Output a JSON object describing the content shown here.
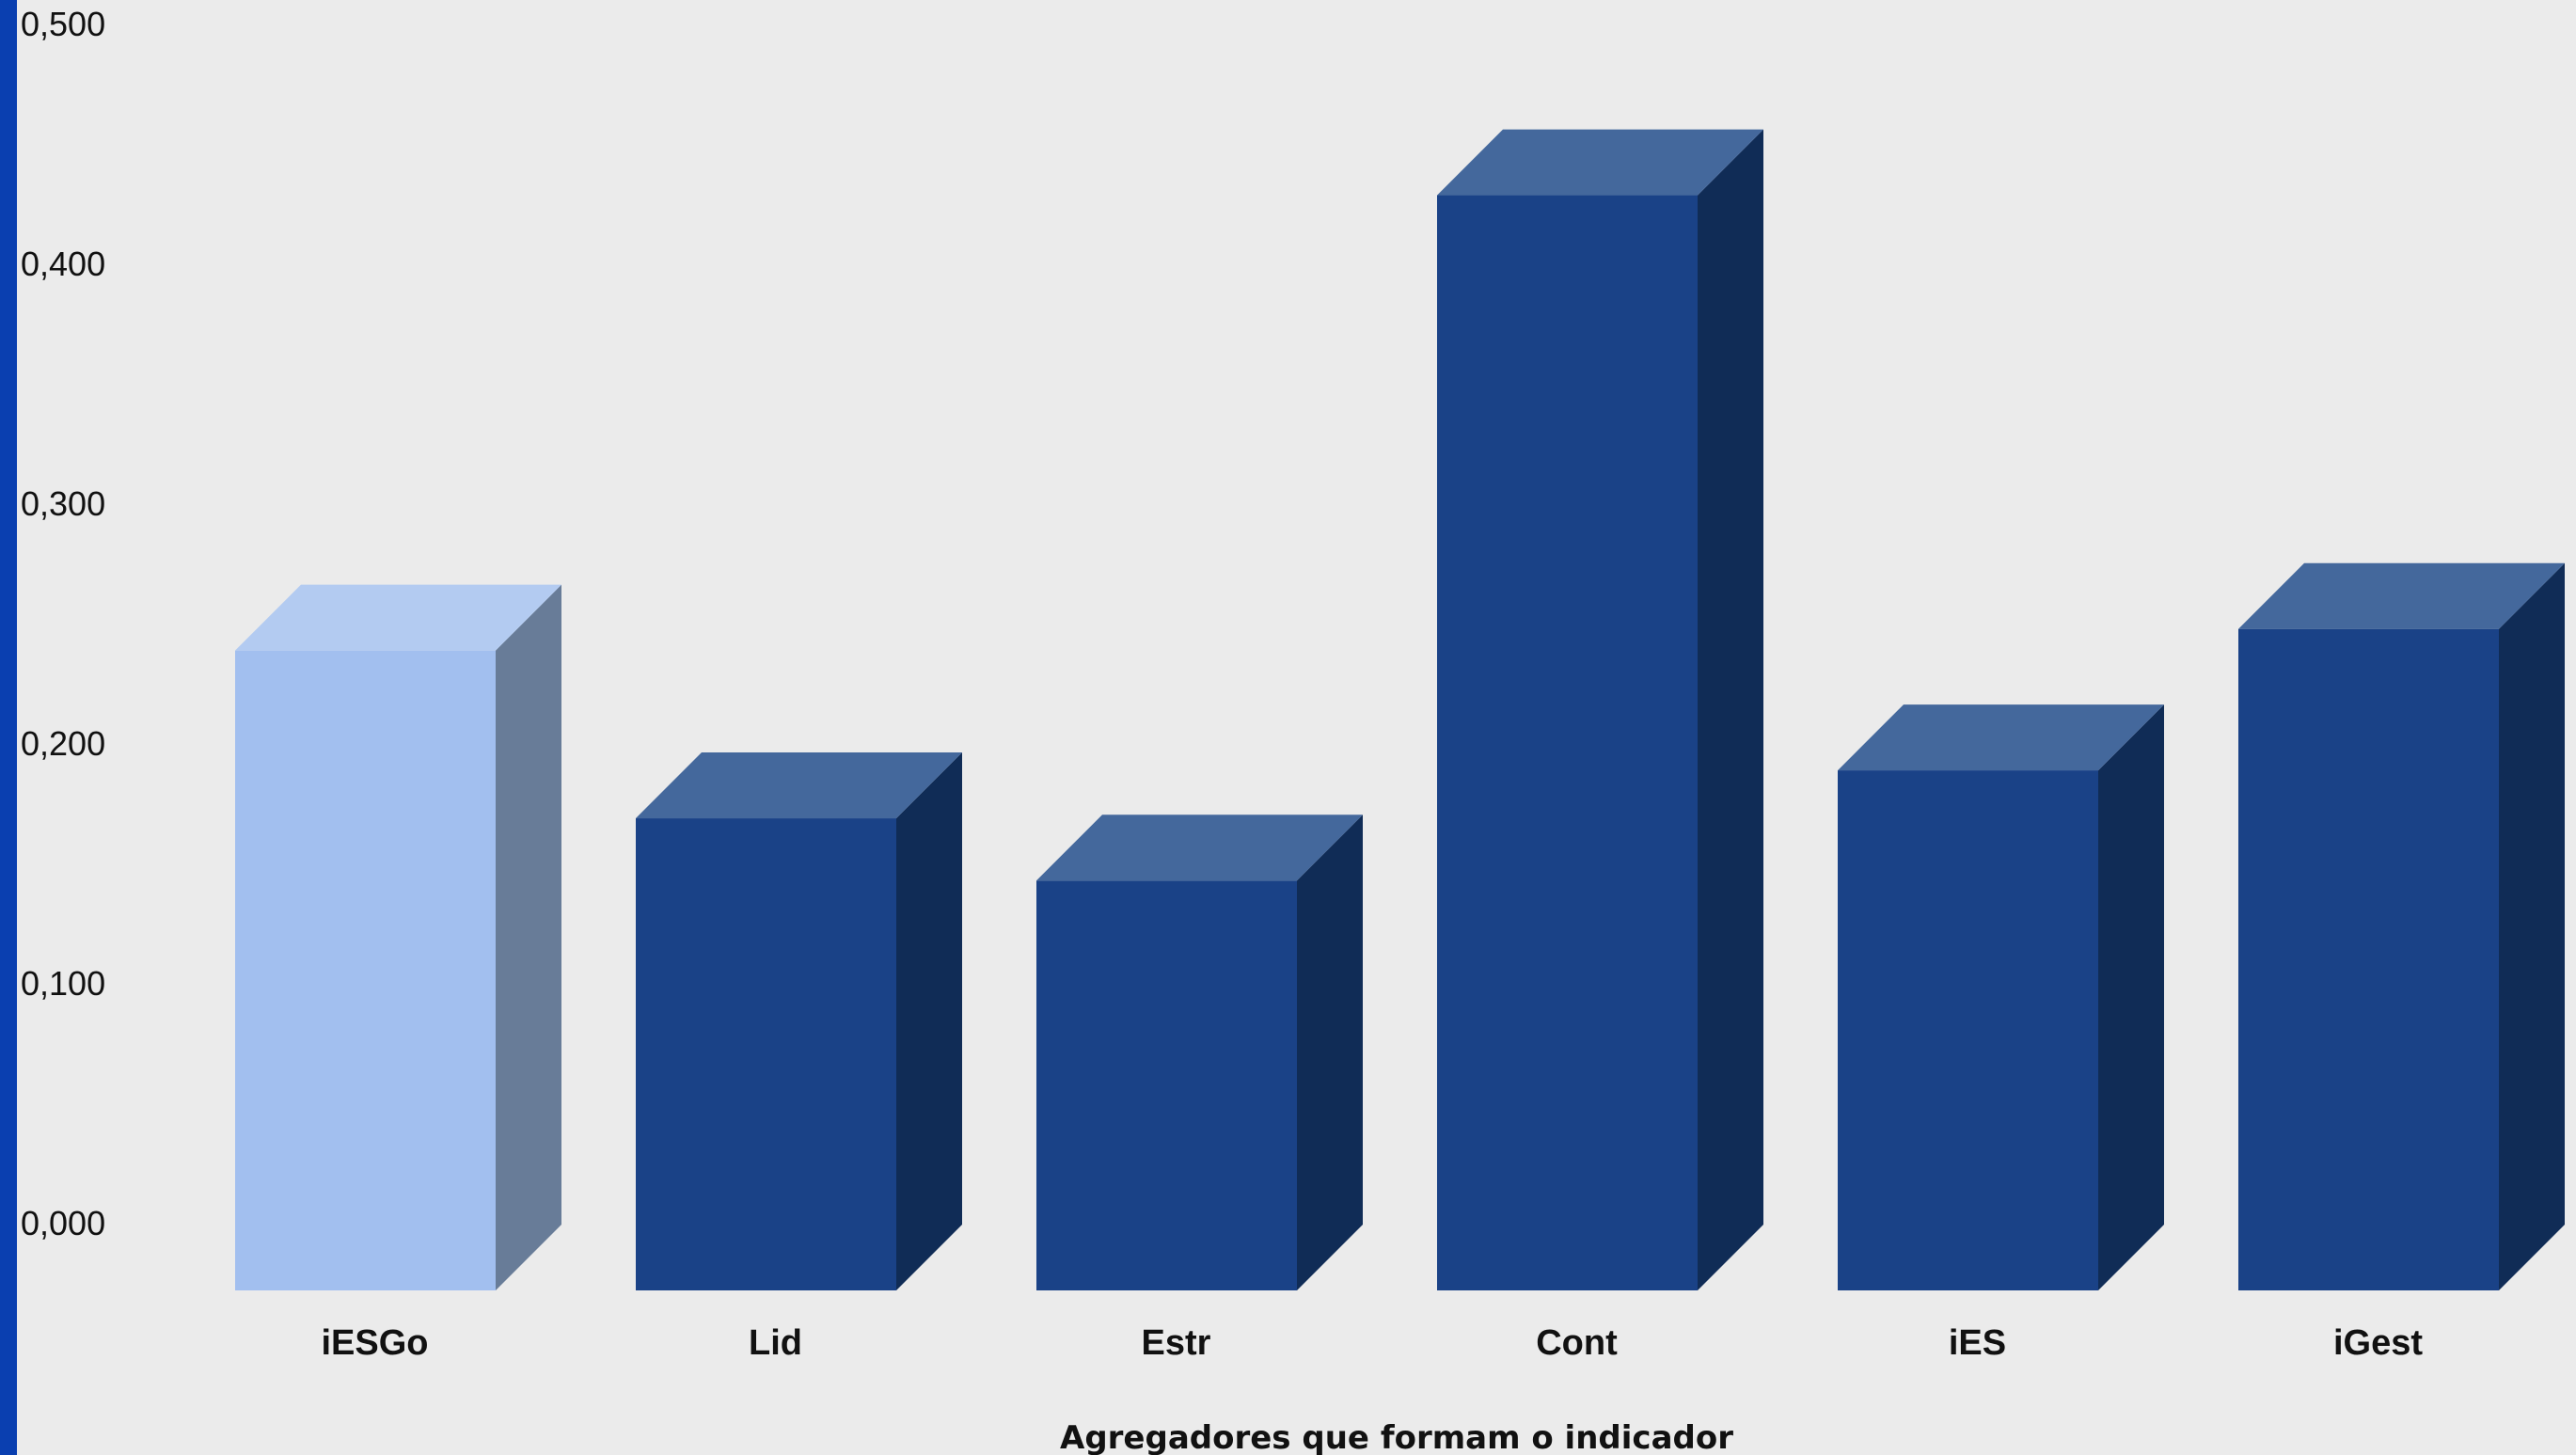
{
  "chart_data": {
    "type": "bar",
    "style": "3d-column",
    "categories": [
      "iESGo",
      "Lid",
      "Estr",
      "Cont",
      "iES",
      "iGest"
    ],
    "values": [
      0.267,
      0.197,
      0.171,
      0.457,
      0.217,
      0.276
    ],
    "ylim": [
      0,
      0.5
    ],
    "yticks": [
      0,
      0.1,
      0.2,
      0.3,
      0.4,
      0.5
    ],
    "ytick_labels": [
      "0,000",
      "0,100",
      "0,200",
      "0,300",
      "0,400",
      "0,500"
    ],
    "xlabel": "Agregadores que formam o indicador",
    "ylabel": "",
    "title": "",
    "grid": false,
    "legend": "none",
    "highlight_index": 0,
    "colors": {
      "background": "#ebebeb",
      "accent_bar": "#0a3fb0",
      "bar_front": "#1a4287",
      "bar_top": "#44689c",
      "bar_side": "#102c56",
      "highlight_front": "#a2bfef",
      "highlight_top": "#b3cbf1",
      "highlight_side": "#687c98"
    }
  }
}
